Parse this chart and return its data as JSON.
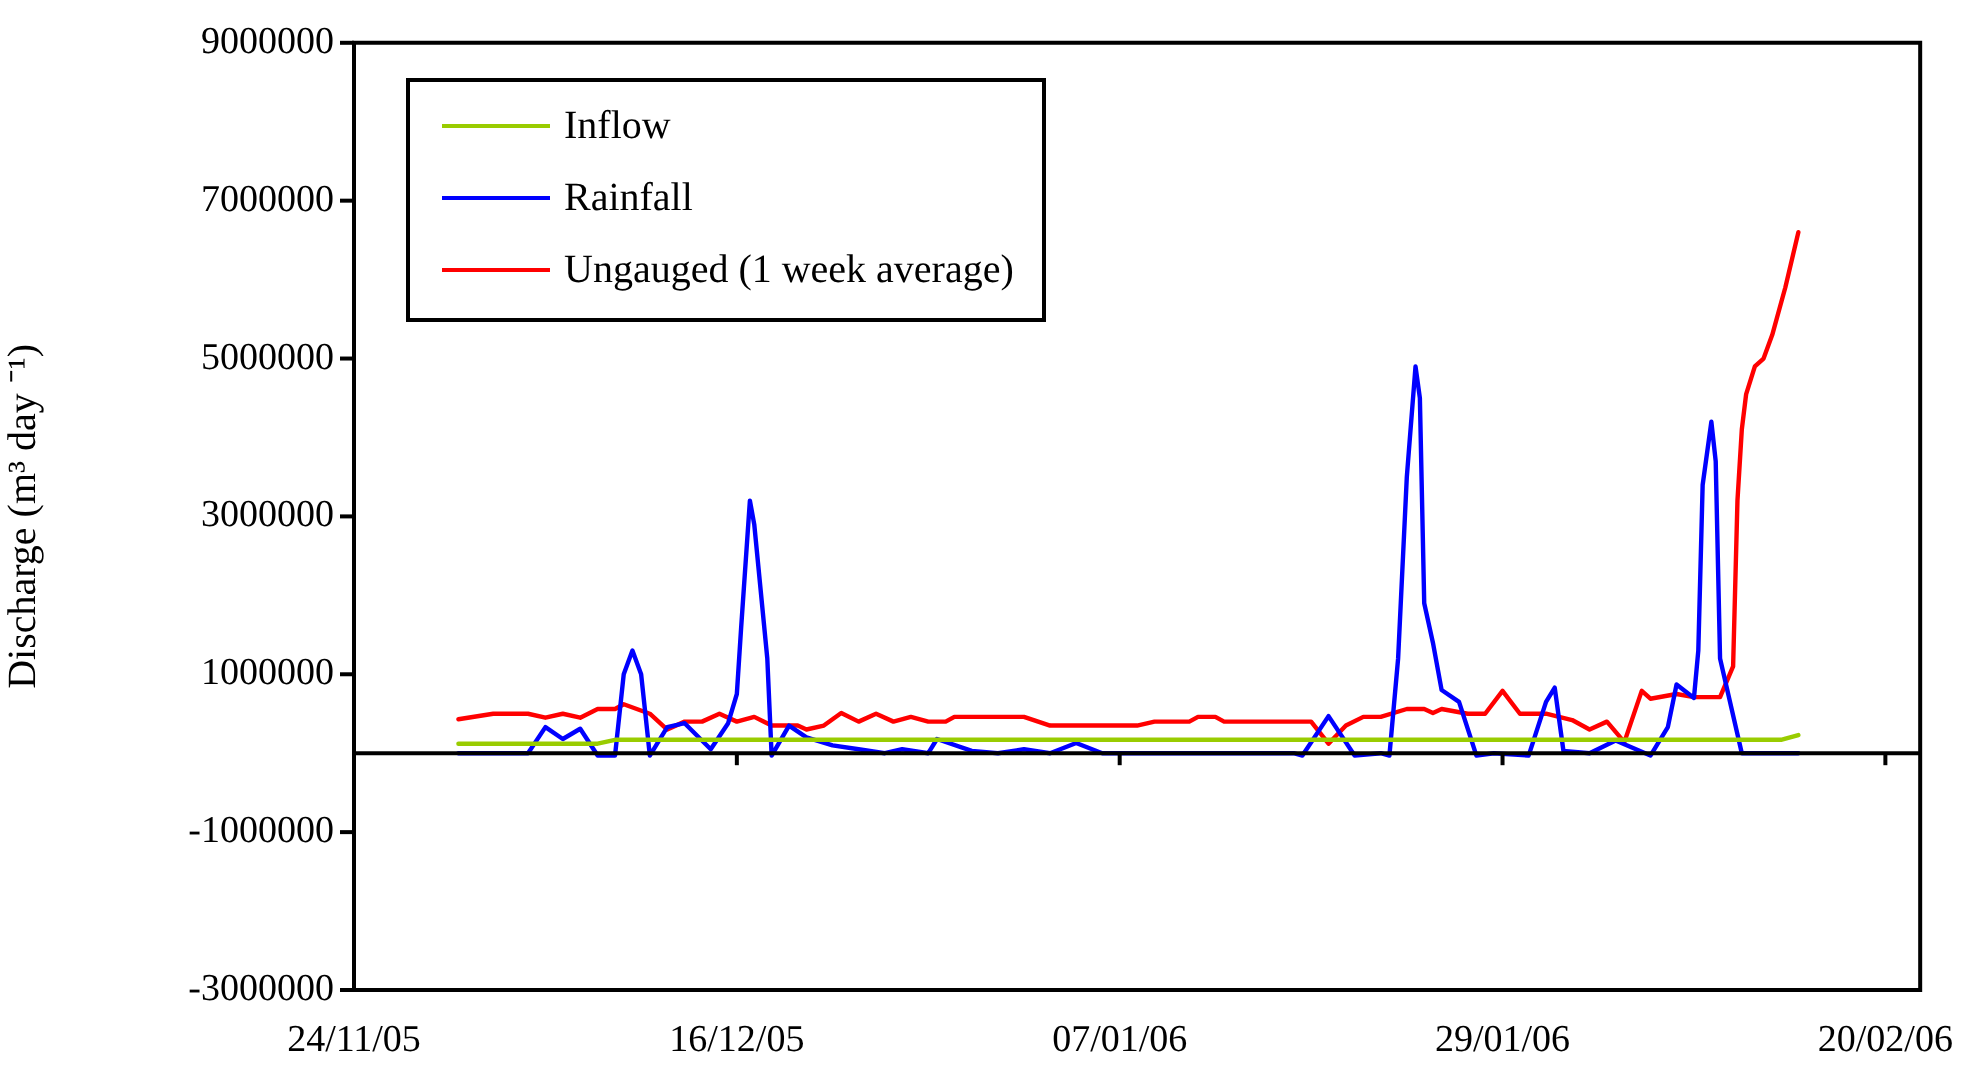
{
  "chart_data": {
    "type": "line",
    "ylabel": "Discharge (m³ day ⁻¹)",
    "xlim": [
      "2005-11-24",
      "2006-02-22"
    ],
    "xticks": [
      {
        "value": "2005-11-24",
        "label": "24/11/05"
      },
      {
        "value": "2005-12-16",
        "label": "16/12/05"
      },
      {
        "value": "2006-01-07",
        "label": "07/01/06"
      },
      {
        "value": "2006-01-29",
        "label": "29/01/06"
      },
      {
        "value": "2006-02-20",
        "label": "20/02/06"
      }
    ],
    "ylim": [
      -3000000,
      9000000
    ],
    "yticks": [
      -3000000,
      -1000000,
      1000000,
      3000000,
      5000000,
      7000000,
      9000000
    ],
    "grid": false,
    "legend": "top left",
    "marker": "none",
    "line_style": "solid",
    "series": [
      {
        "name": "Inflow",
        "color": "#99cc00",
        "x": [
          "2005-11-30",
          "2005-12-08",
          "2005-12-09",
          "2006-02-14",
          "2006-02-15"
        ],
        "values": [
          120000,
          120000,
          170000,
          170000,
          230000
        ]
      },
      {
        "name": "Rainfall",
        "color": "#0000ff",
        "x": [
          "2005-11-30",
          "2005-12-04",
          "2005-12-05",
          "2005-12-06",
          "2005-12-07",
          "2005-12-08",
          "2005-12-09",
          "2005-12-09T12:00",
          "2005-12-10",
          "2005-12-10T12:00",
          "2005-12-11",
          "2005-12-12",
          "2005-12-13",
          "2005-12-14T12:00",
          "2005-12-15T12:00",
          "2005-12-16",
          "2005-12-16T06:00",
          "2005-12-16T18:00",
          "2005-12-17",
          "2005-12-17T18:00",
          "2005-12-18",
          "2005-12-19",
          "2005-12-20",
          "2005-12-21T12:00",
          "2005-12-23",
          "2005-12-24T12:00",
          "2005-12-25T12:00",
          "2005-12-27",
          "2005-12-27T12:00",
          "2005-12-29T12:00",
          "2005-12-31",
          "2006-01-01T12:00",
          "2006-01-03",
          "2006-01-04T12:00",
          "2006-01-06",
          "2006-01-17",
          "2006-01-17T12:00",
          "2006-01-19",
          "2006-01-20T12:00",
          "2006-01-22",
          "2006-01-22T12:00",
          "2006-01-23",
          "2006-01-23T12:00",
          "2006-01-24",
          "2006-01-24T06:00",
          "2006-01-24T12:00",
          "2006-01-25",
          "2006-01-25T12:00",
          "2006-01-26T12:00",
          "2006-01-27T12:00",
          "2006-01-28T12:00",
          "2006-01-30T12:00",
          "2006-01-31T12:00",
          "2006-02-01",
          "2006-02-01T12:00",
          "2006-02-03",
          "2006-02-04T12:00",
          "2006-02-06T12:00",
          "2006-02-07T12:00",
          "2006-02-08",
          "2006-02-09",
          "2006-02-09T06:00",
          "2006-02-09T12:00",
          "2006-02-10",
          "2006-02-10T06:00",
          "2006-02-10T12:00",
          "2006-02-11T18:00",
          "2006-02-15"
        ],
        "values": [
          0,
          0,
          330000,
          180000,
          310000,
          -30000,
          -30000,
          1000000,
          1300000,
          1000000,
          -30000,
          330000,
          380000,
          50000,
          380000,
          750000,
          1600000,
          3200000,
          2900000,
          1200000,
          -30000,
          350000,
          200000,
          100000,
          50000,
          0,
          50000,
          0,
          180000,
          30000,
          0,
          50000,
          0,
          130000,
          0,
          0,
          -30000,
          470000,
          -30000,
          0,
          -30000,
          1200000,
          3500000,
          4900000,
          4500000,
          1900000,
          1400000,
          800000,
          650000,
          -30000,
          0,
          -30000,
          650000,
          830000,
          30000,
          0,
          160000,
          -30000,
          330000,
          870000,
          700000,
          1300000,
          3400000,
          4200000,
          3700000,
          1200000,
          0,
          0
        ]
      },
      {
        "name": "Ungauged (1 week average)",
        "color": "#ff0000",
        "x": [
          "2005-11-30",
          "2005-12-02",
          "2005-12-04",
          "2005-12-05",
          "2005-12-06",
          "2005-12-07",
          "2005-12-08",
          "2005-12-09",
          "2005-12-09T12:00",
          "2005-12-11",
          "2005-12-12",
          "2005-12-13",
          "2005-12-14",
          "2005-12-15",
          "2005-12-16",
          "2005-12-17",
          "2005-12-18",
          "2005-12-19T12:00",
          "2005-12-20",
          "2005-12-21",
          "2005-12-22",
          "2005-12-23",
          "2005-12-24",
          "2005-12-25",
          "2005-12-26",
          "2005-12-27",
          "2005-12-28",
          "2005-12-28T12:00",
          "2006-01-01T12:00",
          "2006-01-03",
          "2006-01-08",
          "2006-01-09",
          "2006-01-11",
          "2006-01-11T12:00",
          "2006-01-12T12:00",
          "2006-01-13",
          "2006-01-18",
          "2006-01-19",
          "2006-01-20",
          "2006-01-21",
          "2006-01-22",
          "2006-01-23T12:00",
          "2006-01-24T12:00",
          "2006-01-25",
          "2006-01-25T12:00",
          "2006-01-27",
          "2006-01-28",
          "2006-01-29",
          "2006-01-30",
          "2006-01-31T12:00",
          "2006-02-02",
          "2006-02-03",
          "2006-02-04",
          "2006-02-05",
          "2006-02-06",
          "2006-02-06T12:00",
          "2006-02-08",
          "2006-02-09",
          "2006-02-10T12:00",
          "2006-02-11",
          "2006-02-11T06:00",
          "2006-02-11T12:00",
          "2006-02-11T18:00",
          "2006-02-12",
          "2006-02-12T12:00",
          "2006-02-13",
          "2006-02-13T12:00",
          "2006-02-14T06:00",
          "2006-02-15"
        ],
        "values": [
          430000,
          500000,
          500000,
          450000,
          500000,
          450000,
          560000,
          560000,
          620000,
          500000,
          300000,
          400000,
          400000,
          500000,
          400000,
          460000,
          350000,
          350000,
          300000,
          350000,
          510000,
          400000,
          500000,
          400000,
          460000,
          400000,
          400000,
          460000,
          460000,
          350000,
          350000,
          400000,
          400000,
          460000,
          460000,
          400000,
          400000,
          120000,
          350000,
          460000,
          460000,
          560000,
          560000,
          510000,
          560000,
          500000,
          500000,
          790000,
          500000,
          500000,
          420000,
          300000,
          400000,
          140000,
          790000,
          690000,
          750000,
          710000,
          710000,
          970000,
          1100000,
          3200000,
          4100000,
          4550000,
          4900000,
          5000000,
          5300000,
          5900000,
          6600000
        ]
      }
    ]
  }
}
